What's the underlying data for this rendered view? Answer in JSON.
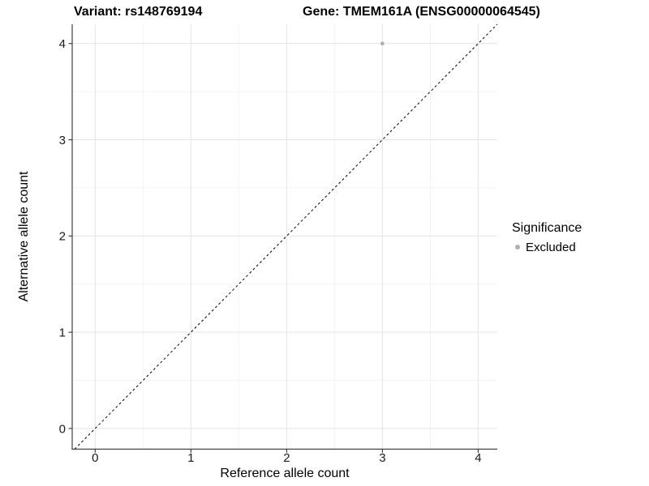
{
  "chart_data": {
    "type": "scatter",
    "titles": {
      "left": "Variant: rs148769194",
      "right": "Gene: TMEM161A (ENSG00000064545)"
    },
    "xlabel": "Reference allele count",
    "ylabel": "Alternative allele count",
    "xticks": [
      0,
      1,
      2,
      3,
      4
    ],
    "yticks": [
      0,
      1,
      2,
      3,
      4
    ],
    "xminor": [
      0.5,
      1.5,
      2.5,
      3.5
    ],
    "yminor": [
      0.5,
      1.5,
      2.5,
      3.5
    ],
    "xlim": [
      -0.24,
      4.2
    ],
    "ylim": [
      -0.215,
      4.2
    ],
    "grid": "major+minor",
    "legend_position": "right",
    "points": [
      {
        "x": 3,
        "y": 4,
        "significance": "Excluded"
      }
    ],
    "abline": {
      "slope": 1,
      "intercept": 0,
      "style": "dashed",
      "color": "#000000"
    },
    "legend": {
      "title": "Significance",
      "items": [
        {
          "label": "Excluded",
          "color": "#b0b0b0"
        }
      ]
    },
    "colors": {
      "point": "#b0b0b0",
      "grid_major": "#e4e4e4",
      "grid_minor": "#f2f2f2",
      "axis_line": "#404040",
      "tick_mark": "#333333",
      "text": "#000000"
    }
  }
}
